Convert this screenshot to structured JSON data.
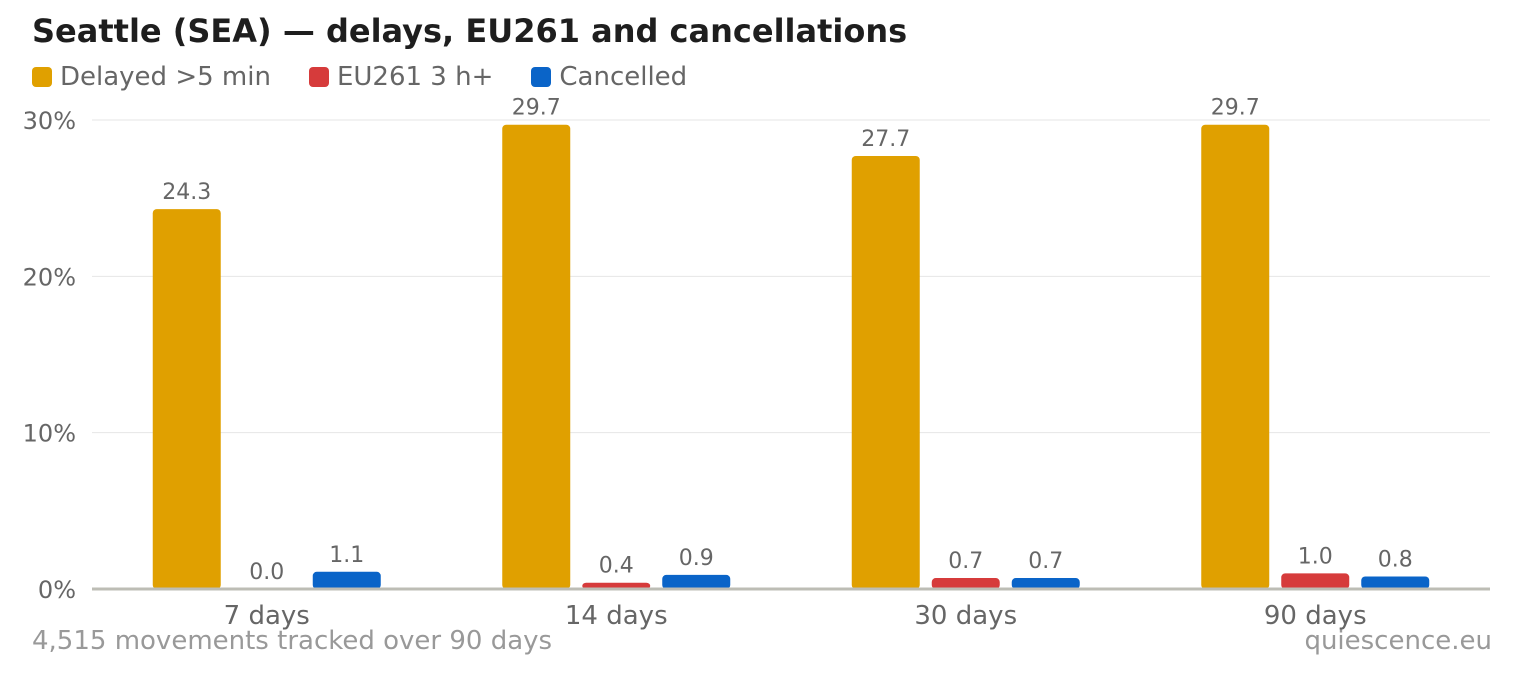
{
  "title": "Seattle (SEA) — delays, EU261 and cancellations",
  "footer": {
    "note": "4,515 movements tracked over 90 days",
    "brand": "quiescence.eu"
  },
  "chart_data": {
    "type": "bar",
    "title": "Seattle (SEA) — delays, EU261 and cancellations",
    "xlabel": "",
    "ylabel": "",
    "categories": [
      "7 days",
      "14 days",
      "30 days",
      "90 days"
    ],
    "series": [
      {
        "name": "Delayed >5 min",
        "color": "#e0a000",
        "values": [
          24.3,
          29.7,
          27.7,
          29.7
        ],
        "labels": [
          "24.3",
          "29.7",
          "27.7",
          "29.7"
        ]
      },
      {
        "name": "EU261 3 h+",
        "color": "#d63b3b",
        "values": [
          0.0,
          0.4,
          0.7,
          1.0
        ],
        "labels": [
          "0.0",
          "0.4",
          "0.7",
          "1.0"
        ]
      },
      {
        "name": "Cancelled",
        "color": "#0a64c8",
        "values": [
          1.1,
          0.9,
          0.7,
          0.8
        ],
        "labels": [
          "1.1",
          "0.9",
          "0.7",
          "0.8"
        ]
      }
    ],
    "ylim": [
      0,
      30
    ],
    "yticks": [
      0,
      10,
      20,
      30
    ],
    "ytick_labels": [
      "0%",
      "10%",
      "20%",
      "30%"
    ],
    "grid": true,
    "legend": "top-left"
  }
}
